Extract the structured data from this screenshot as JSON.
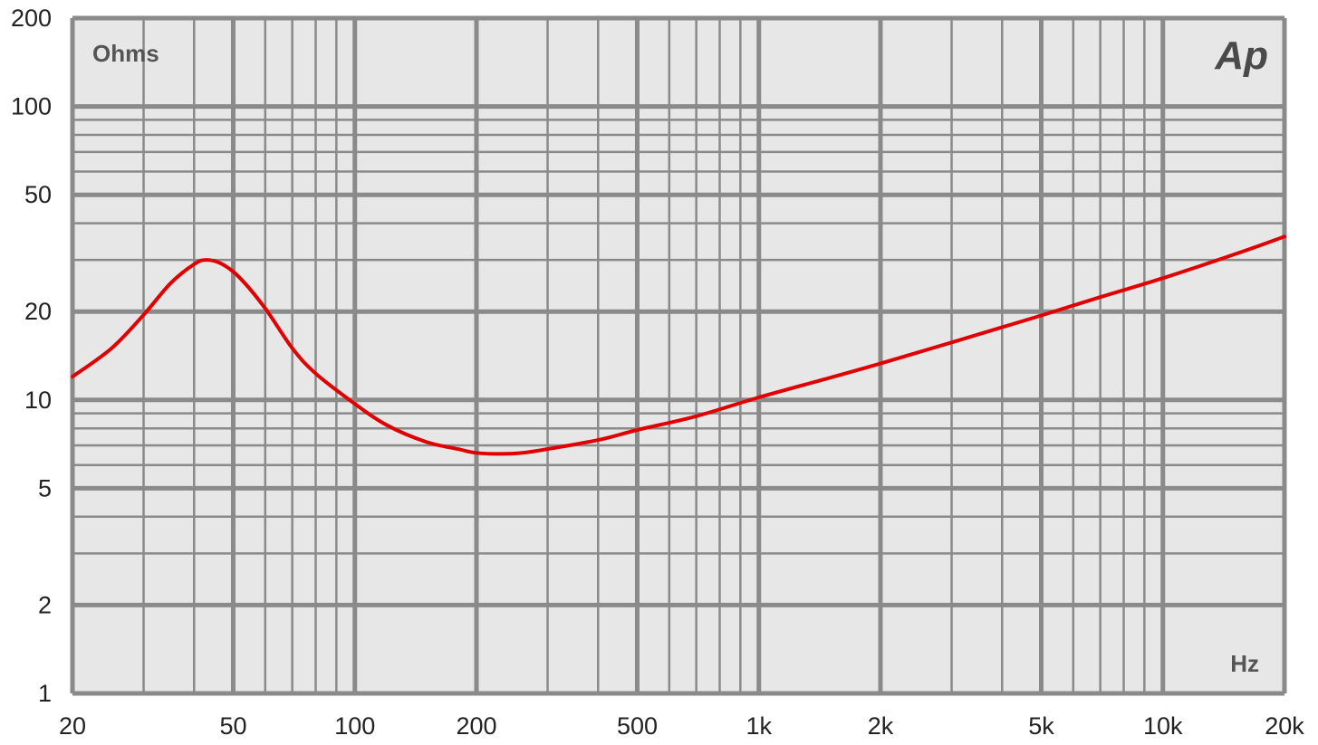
{
  "chart_data": {
    "type": "line",
    "title": "",
    "ylabel": "Ohms",
    "xlabel": "Hz",
    "logo": "Ap",
    "xscale": "log",
    "yscale": "log",
    "xlim": [
      20,
      20000
    ],
    "ylim": [
      1,
      200
    ],
    "grid": true,
    "x_ticks": [
      {
        "value": 20,
        "label": "20"
      },
      {
        "value": 50,
        "label": "50"
      },
      {
        "value": 100,
        "label": "100"
      },
      {
        "value": 200,
        "label": "200"
      },
      {
        "value": 500,
        "label": "500"
      },
      {
        "value": 1000,
        "label": "1k"
      },
      {
        "value": 2000,
        "label": "2k"
      },
      {
        "value": 5000,
        "label": "5k"
      },
      {
        "value": 10000,
        "label": "10k"
      },
      {
        "value": 20000,
        "label": "20k"
      }
    ],
    "y_ticks": [
      {
        "value": 1,
        "label": "1"
      },
      {
        "value": 2,
        "label": "2"
      },
      {
        "value": 5,
        "label": "5"
      },
      {
        "value": 10,
        "label": "10"
      },
      {
        "value": 20,
        "label": "20"
      },
      {
        "value": 50,
        "label": "50"
      },
      {
        "value": 100,
        "label": "100"
      },
      {
        "value": 200,
        "label": "200"
      }
    ],
    "series": [
      {
        "color": "#e00000",
        "x": [
          20,
          25,
          30,
          35,
          40,
          43,
          47,
          52,
          60,
          70,
          80,
          100,
          120,
          150,
          180,
          200,
          230,
          260,
          300,
          400,
          500,
          700,
          1000,
          1500,
          2000,
          3000,
          5000,
          7000,
          10000,
          15000,
          20000
        ],
        "y": [
          12,
          15,
          19.5,
          25,
          29,
          30,
          29,
          26,
          20.5,
          15,
          12.3,
          9.7,
          8.2,
          7.2,
          6.8,
          6.6,
          6.55,
          6.6,
          6.8,
          7.3,
          7.9,
          8.8,
          10.2,
          11.9,
          13.3,
          15.7,
          19.4,
          22.4,
          26,
          31.3,
          36
        ]
      }
    ]
  }
}
